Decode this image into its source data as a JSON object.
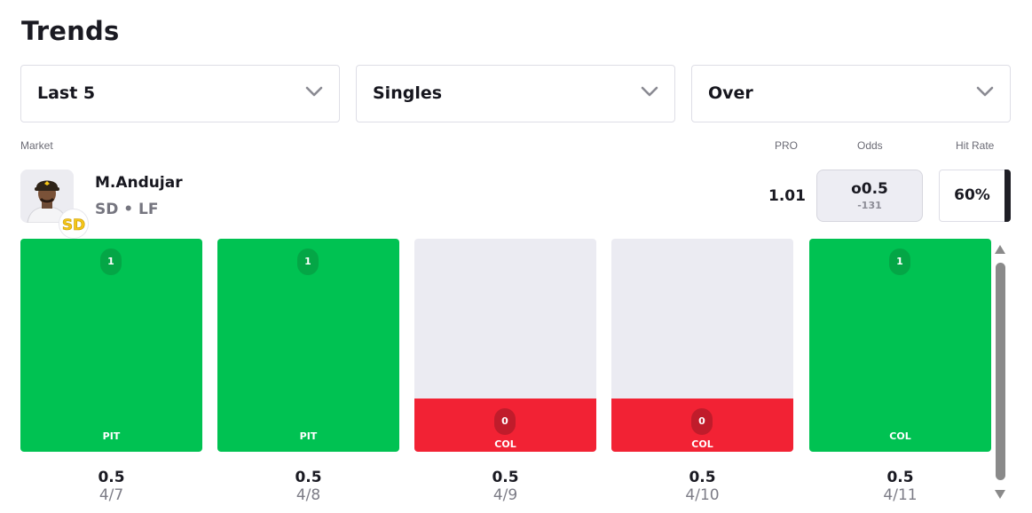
{
  "page": {
    "title": "Trends"
  },
  "filters": {
    "period": "Last 5",
    "market_type": "Singles",
    "side": "Over"
  },
  "table_headers": {
    "market": "Market",
    "pro": "PRO",
    "odds": "Odds",
    "hit_rate": "Hit Rate"
  },
  "player": {
    "name": "M.Andujar",
    "meta": "SD • LF",
    "team": "SD",
    "pro": "1.01",
    "odds_line": "o0.5",
    "odds_price": "-131",
    "hit_rate": "60%"
  },
  "games": [
    {
      "result": "1",
      "opponent": "PIT",
      "line": "0.5",
      "date": "4/7",
      "hit": true
    },
    {
      "result": "1",
      "opponent": "PIT",
      "line": "0.5",
      "date": "4/8",
      "hit": true
    },
    {
      "result": "0",
      "opponent": "COL",
      "line": "0.5",
      "date": "4/9",
      "hit": false
    },
    {
      "result": "0",
      "opponent": "COL",
      "line": "0.5",
      "date": "4/10",
      "hit": false
    },
    {
      "result": "1",
      "opponent": "COL",
      "line": "0.5",
      "date": "4/11",
      "hit": true
    }
  ],
  "colors": {
    "hit": "#00c252",
    "miss": "#f22234",
    "empty": "#ebebf2",
    "team_gold": "#f5c518"
  },
  "icons": [
    "chevron-down-icon",
    "player-headshot",
    "padres-logo-icon",
    "scroll-up-icon",
    "scroll-down-icon"
  ]
}
